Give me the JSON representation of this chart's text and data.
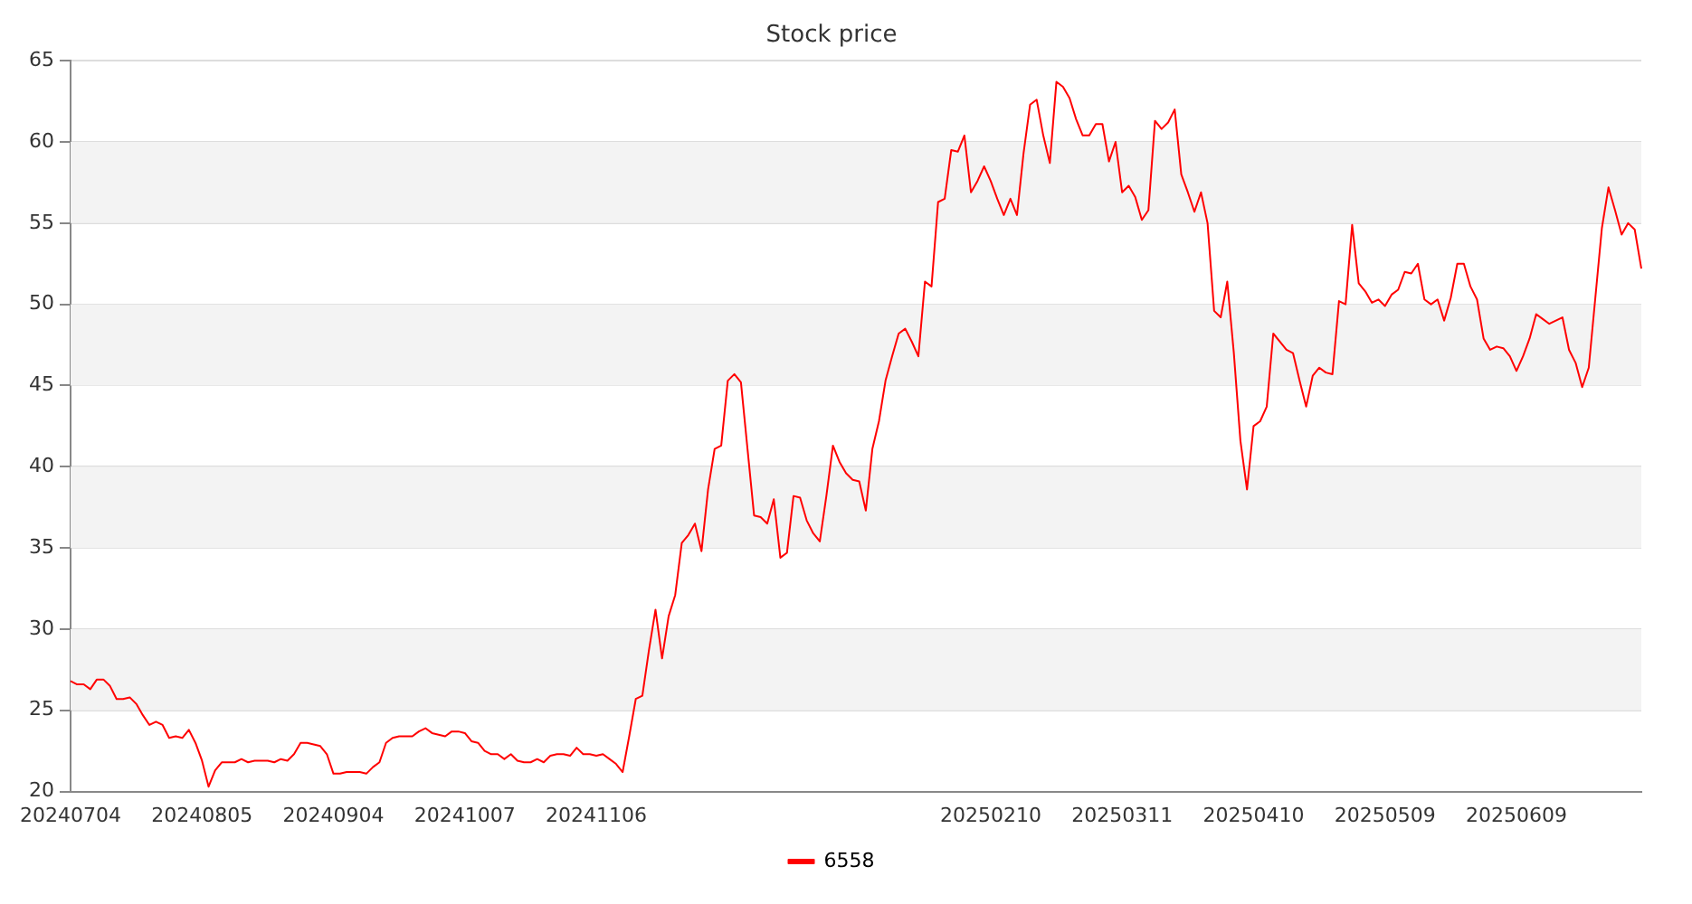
{
  "chart_data": {
    "type": "line",
    "title": "Stock price",
    "categories": [
      "20240704",
      null,
      null,
      null,
      null,
      null,
      null,
      null,
      null,
      null,
      null,
      null,
      null,
      null,
      null,
      null,
      null,
      null,
      null,
      null,
      "20240805",
      null,
      null,
      null,
      null,
      null,
      null,
      null,
      null,
      null,
      null,
      null,
      null,
      null,
      null,
      null,
      null,
      null,
      null,
      null,
      "20240904",
      null,
      null,
      null,
      null,
      null,
      null,
      null,
      null,
      null,
      null,
      null,
      null,
      null,
      null,
      null,
      null,
      null,
      null,
      null,
      "20241007",
      null,
      null,
      null,
      null,
      null,
      null,
      null,
      null,
      null,
      null,
      null,
      null,
      null,
      null,
      null,
      null,
      null,
      null,
      null,
      "20241106",
      null,
      null,
      null,
      null,
      null,
      null,
      null,
      null,
      null,
      null,
      null,
      null,
      null,
      null,
      null,
      null,
      null,
      null,
      null,
      null,
      null,
      null,
      null,
      null,
      null,
      null,
      null,
      null,
      null,
      null,
      null,
      null,
      null,
      null,
      null,
      null,
      null,
      null,
      null,
      null,
      null,
      null,
      null,
      null,
      null,
      null,
      null,
      null,
      null,
      null,
      null,
      null,
      null,
      null,
      null,
      null,
      null,
      null,
      null,
      "20250210",
      null,
      null,
      null,
      null,
      null,
      null,
      null,
      null,
      null,
      null,
      null,
      null,
      null,
      null,
      null,
      null,
      null,
      null,
      null,
      "20250311",
      null,
      null,
      null,
      null,
      null,
      null,
      null,
      null,
      null,
      null,
      null,
      null,
      null,
      null,
      null,
      null,
      null,
      null,
      null,
      "20250410",
      null,
      null,
      null,
      null,
      null,
      null,
      null,
      null,
      null,
      null,
      null,
      null,
      null,
      null,
      null,
      null,
      null,
      null,
      null,
      "20250509",
      null,
      null,
      null,
      null,
      null,
      null,
      null,
      null,
      null,
      null,
      null,
      null,
      null,
      null,
      null,
      null,
      null,
      null,
      null,
      "20250609",
      null,
      null,
      null,
      null,
      null,
      null,
      null,
      null,
      null,
      null,
      null,
      null,
      null,
      null,
      null,
      null,
      null,
      null,
      null
    ],
    "series": [
      {
        "name": "6558",
        "color": "#ff0000",
        "values": [
          26.8,
          26.6,
          26.6,
          26.3,
          26.9,
          26.9,
          26.5,
          25.7,
          25.7,
          25.8,
          25.4,
          24.7,
          24.1,
          24.3,
          24.1,
          23.3,
          23.4,
          23.3,
          23.8,
          23.0,
          21.9,
          20.3,
          21.3,
          21.8,
          21.8,
          21.8,
          22.0,
          21.8,
          21.9,
          21.9,
          21.9,
          21.8,
          22.0,
          21.9,
          22.3,
          23.0,
          23.0,
          22.9,
          22.8,
          22.3,
          21.1,
          21.1,
          21.2,
          21.2,
          21.2,
          21.1,
          21.5,
          21.8,
          23.0,
          23.3,
          23.4,
          23.4,
          23.4,
          23.7,
          23.9,
          23.6,
          23.5,
          23.4,
          23.7,
          23.7,
          23.6,
          23.1,
          23.0,
          22.5,
          22.3,
          22.3,
          22.0,
          22.3,
          21.9,
          21.8,
          21.8,
          22.0,
          21.8,
          22.2,
          22.3,
          22.3,
          22.2,
          22.7,
          22.3,
          22.3,
          22.2,
          22.3,
          22.0,
          21.7,
          21.2,
          23.4,
          25.7,
          25.9,
          28.7,
          31.2,
          28.2,
          30.8,
          32.1,
          35.3,
          35.8,
          36.5,
          34.8,
          38.6,
          41.1,
          41.3,
          45.3,
          45.7,
          45.2,
          41.1,
          37.0,
          36.9,
          36.5,
          38.0,
          34.4,
          34.7,
          38.2,
          38.1,
          36.7,
          35.9,
          35.4,
          38.2,
          41.3,
          40.3,
          39.6,
          39.2,
          39.1,
          37.3,
          41.1,
          42.8,
          45.3,
          46.8,
          48.2,
          48.5,
          47.7,
          46.8,
          51.4,
          51.1,
          56.3,
          56.5,
          59.5,
          59.4,
          60.4,
          56.9,
          57.6,
          58.5,
          57.6,
          56.5,
          55.5,
          56.5,
          55.5,
          59.3,
          62.3,
          62.6,
          60.4,
          58.7,
          63.7,
          63.4,
          62.7,
          61.4,
          60.4,
          60.4,
          61.1,
          61.1,
          58.8,
          60.0,
          56.9,
          57.3,
          56.6,
          55.2,
          55.8,
          61.3,
          60.8,
          61.2,
          62.0,
          58.0,
          56.9,
          55.7,
          56.9,
          55.0,
          49.6,
          49.2,
          51.4,
          47.0,
          41.6,
          38.6,
          42.5,
          42.8,
          43.7,
          48.2,
          47.7,
          47.2,
          47.0,
          45.3,
          43.7,
          45.6,
          46.1,
          45.8,
          45.7,
          50.2,
          50.0,
          54.9,
          51.3,
          50.8,
          50.1,
          50.3,
          49.9,
          50.6,
          50.9,
          52.0,
          51.9,
          52.5,
          50.3,
          50.0,
          50.3,
          49.0,
          50.4,
          52.5,
          52.5,
          51.1,
          50.3,
          47.9,
          47.2,
          47.4,
          47.3,
          46.8,
          45.9,
          46.8,
          47.9,
          49.4,
          49.1,
          48.8,
          49.0,
          49.2,
          47.2,
          46.4,
          44.9,
          46.1,
          50.4,
          54.7,
          57.2,
          55.8,
          54.3,
          55.0,
          54.6,
          52.2
        ]
      }
    ],
    "ylim": [
      20,
      65
    ],
    "yticks": [
      20,
      25,
      30,
      35,
      40,
      45,
      50,
      55,
      60,
      65
    ],
    "grid": "y",
    "legend": "bottom",
    "marker": "none",
    "line_style": "solid"
  }
}
